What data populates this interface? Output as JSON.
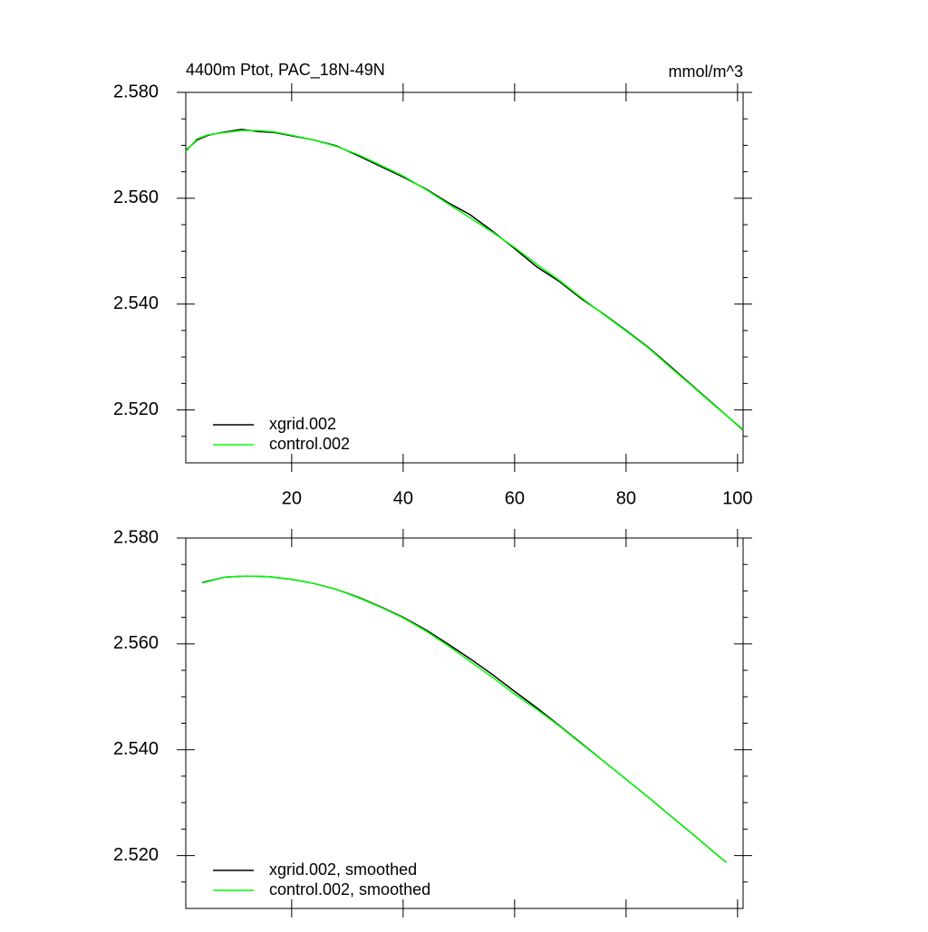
{
  "chart_data": [
    {
      "type": "line",
      "title": "4400m Ptot, PAC_18N-49N",
      "units": "mmol/m^3",
      "x": [
        1,
        3,
        5,
        8,
        11,
        14,
        17,
        20,
        24,
        28,
        32,
        36,
        40,
        44,
        48,
        52,
        56,
        60,
        64,
        68,
        72,
        76,
        80,
        84,
        88,
        92,
        96,
        101
      ],
      "series": [
        {
          "name": "xgrid.002",
          "color": "#000000",
          "values": [
            2.569,
            2.571,
            2.5719,
            2.5725,
            2.573,
            2.5726,
            2.5724,
            2.5718,
            2.571,
            2.5699,
            2.568,
            2.566,
            2.564,
            2.5618,
            2.5592,
            2.5569,
            2.5538,
            2.5505,
            2.547,
            2.5443,
            2.541,
            2.5381,
            2.535,
            2.5318,
            2.5282,
            2.5245,
            2.5208,
            2.5162
          ]
        },
        {
          "name": "control.002",
          "color": "#00ff00",
          "values": [
            2.5688,
            2.5712,
            2.572,
            2.5724,
            2.5728,
            2.5728,
            2.5725,
            2.5719,
            2.571,
            2.5698,
            2.5682,
            2.5662,
            2.5642,
            2.5617,
            2.559,
            2.5563,
            2.5536,
            2.5507,
            2.5475,
            2.5445,
            2.5412,
            2.538,
            2.5349,
            2.5317,
            2.528,
            2.5244,
            2.5207,
            2.5163
          ]
        }
      ],
      "xlim": [
        1,
        101
      ],
      "xticks": [
        20,
        40,
        60,
        80,
        100
      ],
      "xtick_labels": true,
      "ylim": [
        2.51,
        2.58
      ],
      "yticks": [
        {
          "value": 2.52,
          "label": "2.520"
        },
        {
          "value": 2.54,
          "label": "2.540"
        },
        {
          "value": 2.56,
          "label": "2.560"
        },
        {
          "value": 2.58,
          "label": "2.580"
        }
      ],
      "yminorticks": [
        2.515,
        2.525,
        2.53,
        2.535,
        2.545,
        2.55,
        2.555,
        2.565,
        2.57,
        2.575
      ],
      "legend": "bottom left"
    },
    {
      "type": "line",
      "x": [
        4,
        8,
        12,
        16,
        20,
        24,
        28,
        32,
        36,
        40,
        44,
        48,
        52,
        56,
        60,
        64,
        68,
        72,
        76,
        80,
        84,
        88,
        92,
        96,
        98
      ],
      "series": [
        {
          "name": "xgrid.002, smoothed",
          "color": "#000000",
          "values": [
            2.5716,
            2.5726,
            2.5728,
            2.5727,
            2.5722,
            2.5714,
            2.5703,
            2.5688,
            2.567,
            2.565,
            2.5627,
            2.56,
            2.5572,
            2.5542,
            2.551,
            2.5479,
            2.5446,
            2.5412,
            2.5378,
            2.5344,
            2.531,
            2.5275,
            2.524,
            2.5204,
            2.5187
          ]
        },
        {
          "name": "control.002, smoothed",
          "color": "#00ff00",
          "values": [
            2.5715,
            2.5726,
            2.5728,
            2.5727,
            2.5722,
            2.5714,
            2.5703,
            2.5687,
            2.5669,
            2.5649,
            2.5625,
            2.5597,
            2.5567,
            2.5537,
            2.5505,
            2.5476,
            2.5445,
            2.5411,
            2.5378,
            2.5344,
            2.531,
            2.5275,
            2.524,
            2.5204,
            2.5187
          ]
        }
      ],
      "xlim": [
        1,
        101
      ],
      "xticks": [
        20,
        40,
        60,
        80,
        100
      ],
      "xtick_labels": false,
      "ylim": [
        2.51,
        2.58
      ],
      "yticks": [
        {
          "value": 2.52,
          "label": "2.520"
        },
        {
          "value": 2.54,
          "label": "2.540"
        },
        {
          "value": 2.56,
          "label": "2.560"
        },
        {
          "value": 2.58,
          "label": "2.580"
        }
      ],
      "yminorticks": [
        2.515,
        2.525,
        2.53,
        2.535,
        2.545,
        2.55,
        2.555,
        2.565,
        2.57,
        2.575
      ],
      "legend": "bottom left"
    }
  ]
}
